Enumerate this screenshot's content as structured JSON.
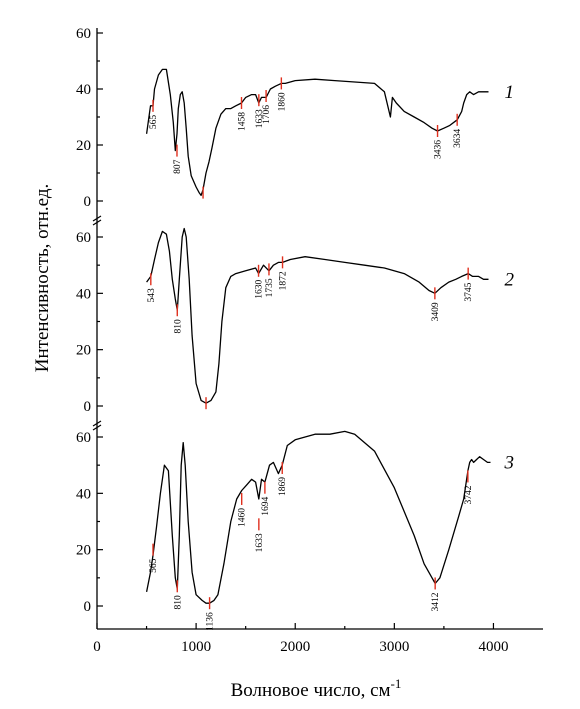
{
  "chart_data": {
    "type": "line",
    "title": "",
    "xlabel": "Волновое число, см",
    "xlabel_sup": "-1",
    "ylabel": "Интенсивность, отн.ед.",
    "xlim": [
      0,
      4500
    ],
    "x_ticks": [
      "0",
      "1000",
      "2000",
      "3000",
      "4000"
    ],
    "x_tick_values": [
      0,
      1000,
      2000,
      3000,
      4000
    ],
    "panels": [
      {
        "label": "1",
        "ylim": [
          0,
          60
        ],
        "y_ticks": [
          "0",
          "20",
          "40",
          "60"
        ],
        "y_tick_values": [
          0,
          20,
          40,
          60
        ],
        "series": {
          "x": [
            500,
            540,
            565,
            580,
            620,
            660,
            700,
            740,
            770,
            790,
            807,
            820,
            840,
            860,
            880,
            900,
            920,
            950,
            1000,
            1030,
            1050,
            1070,
            1100,
            1130,
            1160,
            1200,
            1250,
            1300,
            1350,
            1400,
            1458,
            1500,
            1560,
            1600,
            1633,
            1660,
            1706,
            1750,
            1800,
            1860,
            1900,
            2000,
            2200,
            2400,
            2600,
            2800,
            2900,
            2960,
            2980,
            3020,
            3100,
            3200,
            3300,
            3380,
            3436,
            3500,
            3560,
            3634,
            3680,
            3700,
            3730,
            3760,
            3800,
            3850,
            3900,
            3950
          ],
          "y": [
            24,
            34,
            34,
            40,
            45,
            47,
            47,
            38,
            28,
            18,
            24,
            33,
            38,
            39,
            35,
            26,
            16,
            9,
            5,
            3,
            2,
            4,
            10,
            14,
            19,
            26,
            31,
            33,
            33,
            34,
            35,
            37,
            38,
            38,
            35,
            37,
            37,
            40,
            41,
            42,
            42,
            43,
            43.5,
            43,
            42.5,
            42,
            39,
            30,
            37,
            35,
            32,
            30,
            28,
            26,
            25,
            26,
            27,
            29,
            32,
            35,
            38,
            39,
            38,
            39,
            39,
            39
          ]
        },
        "peaks": [
          {
            "x": 565,
            "y": 34,
            "label": "565"
          },
          {
            "x": 807,
            "y": 18,
            "label": "807"
          },
          {
            "x": 1070,
            "y": 3,
            "label": ""
          },
          {
            "x": 1458,
            "y": 35,
            "label": "1458"
          },
          {
            "x": 1633,
            "y": 36,
            "label": "1633"
          },
          {
            "x": 1706,
            "y": 37.5,
            "label": "1706"
          },
          {
            "x": 1860,
            "y": 42,
            "label": "1860"
          },
          {
            "x": 3436,
            "y": 25,
            "label": "3436"
          },
          {
            "x": 3634,
            "y": 29,
            "label": "3634"
          }
        ]
      },
      {
        "label": "2",
        "ylim": [
          0,
          60
        ],
        "y_ticks": [
          "0",
          "20",
          "40",
          "60"
        ],
        "y_tick_values": [
          0,
          20,
          40,
          60
        ],
        "series": {
          "x": [
            500,
            543,
            580,
            620,
            660,
            700,
            730,
            760,
            790,
            810,
            830,
            860,
            880,
            900,
            930,
            960,
            1000,
            1050,
            1100,
            1150,
            1200,
            1230,
            1260,
            1300,
            1350,
            1400,
            1500,
            1600,
            1630,
            1680,
            1735,
            1780,
            1830,
            1872,
            1950,
            2100,
            2300,
            2500,
            2700,
            2900,
            3100,
            3250,
            3350,
            3409,
            3470,
            3550,
            3620,
            3680,
            3745,
            3790,
            3850,
            3900,
            3950
          ],
          "y": [
            44,
            46,
            52,
            58,
            62,
            61,
            55,
            45,
            38,
            34,
            45,
            60,
            63,
            60,
            45,
            25,
            8,
            2,
            1,
            2,
            5,
            15,
            30,
            42,
            46,
            47,
            48,
            49,
            47,
            50,
            48,
            50,
            51,
            51,
            52,
            53,
            52,
            51,
            50,
            49,
            47,
            44,
            41,
            40,
            42,
            44,
            45,
            46,
            47,
            46,
            46,
            45,
            45
          ]
        },
        "peaks": [
          {
            "x": 543,
            "y": 45,
            "label": "543"
          },
          {
            "x": 810,
            "y": 34,
            "label": "810"
          },
          {
            "x": 1100,
            "y": 1,
            "label": ""
          },
          {
            "x": 1630,
            "y": 48,
            "label": "1630"
          },
          {
            "x": 1735,
            "y": 48.5,
            "label": "1735"
          },
          {
            "x": 1872,
            "y": 51,
            "label": "1872"
          },
          {
            "x": 3409,
            "y": 40,
            "label": "3409"
          },
          {
            "x": 3745,
            "y": 47,
            "label": "3745"
          }
        ]
      },
      {
        "label": "3",
        "ylim": [
          0,
          60
        ],
        "y_ticks": [
          "0",
          "20",
          "40",
          "60"
        ],
        "y_tick_values": [
          0,
          20,
          40,
          60
        ],
        "series": {
          "x": [
            500,
            540,
            565,
            600,
            640,
            680,
            720,
            760,
            790,
            810,
            830,
            850,
            870,
            890,
            920,
            960,
            1000,
            1060,
            1100,
            1136,
            1180,
            1220,
            1280,
            1350,
            1410,
            1460,
            1510,
            1560,
            1600,
            1633,
            1660,
            1694,
            1740,
            1780,
            1830,
            1869,
            1920,
            2000,
            2100,
            2200,
            2350,
            2500,
            2600,
            2800,
            3000,
            3200,
            3300,
            3380,
            3412,
            3460,
            3550,
            3650,
            3700,
            3742,
            3760,
            3780,
            3800,
            3830,
            3860,
            3900,
            3940,
            3970
          ],
          "y": [
            5,
            12,
            18,
            28,
            40,
            50,
            48,
            25,
            10,
            6,
            25,
            50,
            58,
            50,
            30,
            12,
            4,
            2,
            1,
            1,
            2,
            4,
            15,
            30,
            38,
            41,
            43,
            45,
            44,
            38,
            45,
            44,
            50,
            51,
            47,
            50,
            57,
            59,
            60,
            61,
            61,
            62,
            61,
            55,
            42,
            25,
            15,
            10,
            8,
            10,
            20,
            32,
            38,
            48,
            51,
            52,
            51,
            52,
            53,
            52,
            51,
            51
          ]
        },
        "peaks": [
          {
            "x": 565,
            "y": 20,
            "label": "565"
          },
          {
            "x": 810,
            "y": 7,
            "label": "810"
          },
          {
            "x": 1136,
            "y": 1,
            "label": "1136"
          },
          {
            "x": 1460,
            "y": 38,
            "label": "1460"
          },
          {
            "x": 1633,
            "y": 29,
            "label": "1633"
          },
          {
            "x": 1694,
            "y": 42,
            "label": "1694"
          },
          {
            "x": 1869,
            "y": 49,
            "label": "1869"
          },
          {
            "x": 3412,
            "y": 8,
            "label": "3412"
          },
          {
            "x": 3742,
            "y": 46,
            "label": "3742"
          }
        ]
      }
    ],
    "colors": {
      "line": "#000000",
      "marker": "#e0301e"
    },
    "grid": false,
    "legend": "none"
  }
}
